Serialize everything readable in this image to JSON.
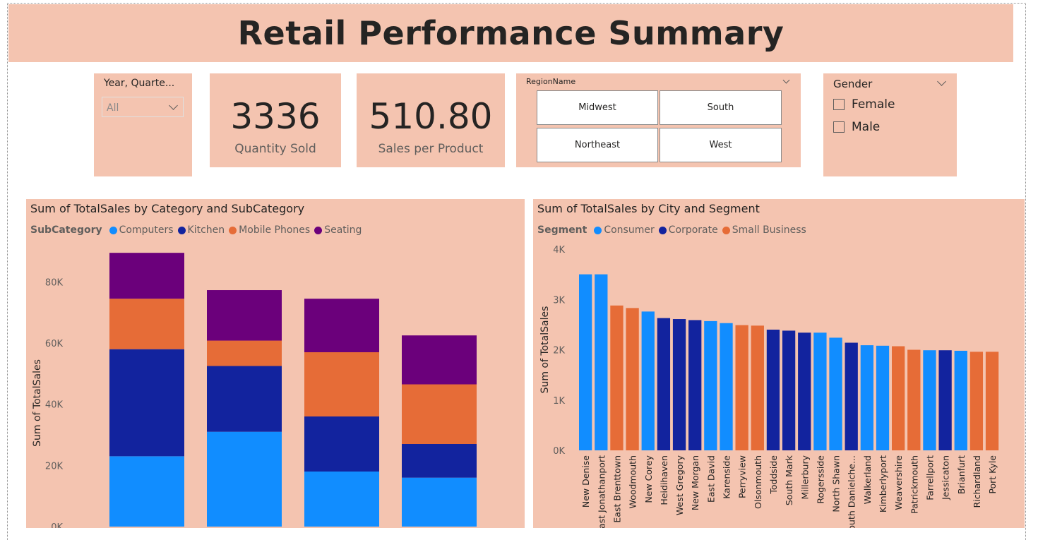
{
  "title": "Retail Performance Summary",
  "year_slicer": {
    "title": "Year, Quarte...",
    "value": "All"
  },
  "kpis": [
    {
      "value": "3336",
      "label": "Quantity Sold"
    },
    {
      "value": "510.80",
      "label": "Sales per Product"
    }
  ],
  "region_slicer": {
    "title": "RegionName",
    "options": [
      "Midwest",
      "South",
      "Northeast",
      "West"
    ]
  },
  "gender_slicer": {
    "title": "Gender",
    "options": [
      "Female",
      "Male"
    ]
  },
  "colors": {
    "background": "#f4c4b0",
    "computers": "#118dff",
    "kitchen": "#12239e",
    "mobile_phones": "#e66c37",
    "seating": "#6b007b",
    "consumer": "#118dff",
    "corporate": "#12239e",
    "small_business": "#e66c37"
  },
  "chart_data": [
    {
      "type": "bar",
      "stacked": true,
      "title": "Sum of TotalSales by Category and SubCategory",
      "legend_title": "SubCategory",
      "ylabel": "Sum of TotalSales",
      "xlabel": "",
      "yticks": [
        "0K",
        "20K",
        "40K",
        "60K",
        "80K"
      ],
      "ylim": [
        0,
        90000
      ],
      "categories": [
        "",
        "",
        "",
        ""
      ],
      "series": [
        {
          "name": "Computers",
          "color": "#118dff",
          "values": [
            23000,
            31000,
            18000,
            16000
          ]
        },
        {
          "name": "Kitchen",
          "color": "#12239e",
          "values": [
            35000,
            21500,
            18000,
            11000
          ]
        },
        {
          "name": "Mobile Phones",
          "color": "#e66c37",
          "values": [
            16500,
            8300,
            21000,
            19500
          ]
        },
        {
          "name": "Seating",
          "color": "#6b007b",
          "values": [
            15000,
            16500,
            17500,
            16000
          ]
        }
      ]
    },
    {
      "type": "bar",
      "title": "Sum of TotalSales by City and Segment",
      "legend_title": "Segment",
      "ylabel": "Sum of TotalSales",
      "xlabel": "",
      "yticks": [
        "0K",
        "1K",
        "2K",
        "3K",
        "4K"
      ],
      "ylim": [
        0,
        4000
      ],
      "series_names": [
        "Consumer",
        "Corporate",
        "Small Business"
      ],
      "categories": [
        "New Denise",
        "East Jonathanport",
        "East Brenttown",
        "Woodmouth",
        "New Corey",
        "Heidihaven",
        "West Gregory",
        "New Morgan",
        "East David",
        "Karenside",
        "Perryview",
        "Olsonmouth",
        "Toddside",
        "South Mark",
        "Millerbury",
        "Rogersside",
        "North Shawn",
        "South Danielchester",
        "Walkerland",
        "Kimberlyport",
        "Weavershire",
        "Patrickmouth",
        "Farrellport",
        "Jessicaton",
        "Brianfurt",
        "Richardland",
        "Port Kyle"
      ],
      "category_labels": [
        "New Denise",
        "ast Jonathanport",
        "East Brenttown",
        "Woodmouth",
        "New Corey",
        "Heidihaven",
        "West Gregory",
        "New Morgan",
        "East David",
        "Karenside",
        "Perryview",
        "Olsonmouth",
        "Toddside",
        "South Mark",
        "Millerbury",
        "Rogersside",
        "North Shawn",
        "outh Danielche...",
        "Walkerland",
        "Kimberlyport",
        "Weavershire",
        "Patrickmouth",
        "Farrellport",
        "Jessicaton",
        "Brianfurt",
        "Richardland",
        "Port Kyle"
      ],
      "segments": [
        "Consumer",
        "Consumer",
        "Small Business",
        "Small Business",
        "Consumer",
        "Corporate",
        "Corporate",
        "Corporate",
        "Consumer",
        "Consumer",
        "Small Business",
        "Small Business",
        "Corporate",
        "Corporate",
        "Corporate",
        "Consumer",
        "Consumer",
        "Corporate",
        "Consumer",
        "Consumer",
        "Small Business",
        "Small Business",
        "Consumer",
        "Corporate",
        "Consumer",
        "Small Business",
        "Small Business"
      ],
      "values": [
        3500,
        3500,
        2880,
        2830,
        2760,
        2630,
        2610,
        2590,
        2570,
        2530,
        2490,
        2480,
        2400,
        2380,
        2340,
        2340,
        2240,
        2140,
        2090,
        2080,
        2070,
        2000,
        1990,
        1990,
        1980,
        1960,
        1960
      ]
    }
  ]
}
